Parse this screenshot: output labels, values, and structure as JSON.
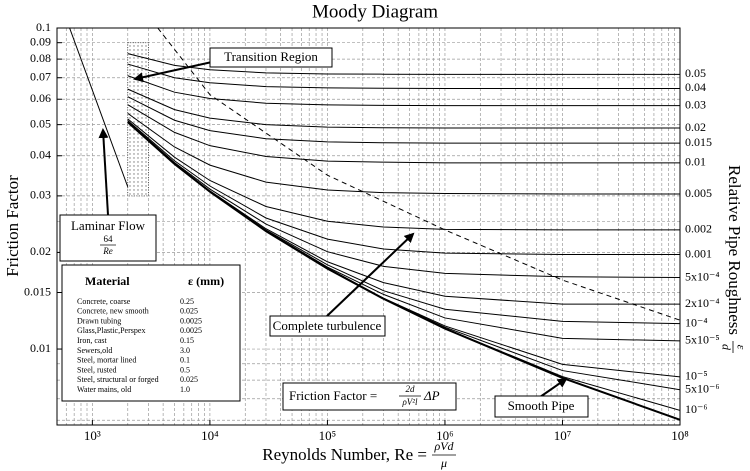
{
  "chart_data": {
    "type": "line",
    "title": "Moody Diagram",
    "x_label": {
      "lead": "Reynolds Number, Re =",
      "numerator": "ρVd",
      "denominator": "μ"
    },
    "y_label": "Friction Factor",
    "y2_label": {
      "lead": "Relative Pipe Roughness",
      "numerator": "ε",
      "denominator": "d"
    },
    "log_x": true,
    "log_y": true,
    "grid": true,
    "xlim": [
      500,
      100000000
    ],
    "ylim": [
      0.0058,
      0.1
    ],
    "xticks": [
      {
        "value": 1000,
        "label": "10³"
      },
      {
        "value": 10000,
        "label": "10⁴"
      },
      {
        "value": 100000,
        "label": "10⁵"
      },
      {
        "value": 1000000,
        "label": "10⁶"
      },
      {
        "value": 10000000,
        "label": "10⁷"
      },
      {
        "value": 100000000,
        "label": "10⁸"
      }
    ],
    "xminorticks": [
      600,
      700,
      800,
      900,
      2000,
      3000,
      4000,
      5000,
      6000,
      7000,
      8000,
      9000,
      20000,
      30000,
      40000,
      50000,
      60000,
      70000,
      80000,
      90000,
      200000,
      300000,
      400000,
      500000,
      600000,
      700000,
      800000,
      900000,
      2000000,
      3000000,
      4000000,
      5000000,
      6000000,
      7000000,
      8000000,
      9000000,
      20000000,
      30000000,
      40000000,
      50000000,
      60000000,
      70000000,
      80000000,
      90000000
    ],
    "yticks": [
      0.1,
      0.09,
      0.08,
      0.07,
      0.06,
      0.05,
      0.04,
      0.03,
      0.02,
      0.015,
      0.01
    ],
    "yminorticks": [
      0.025,
      0.009,
      0.008,
      0.007,
      0.006
    ],
    "x": [
      2000,
      5000,
      10000,
      30000,
      100000,
      300000,
      1000000,
      10000000,
      100000000
    ],
    "series": [
      {
        "name": "0.05",
        "color": "#000000",
        "values": [
          0.0832,
          0.0765,
          0.0741,
          0.0725,
          0.0719,
          0.0718,
          0.0717,
          0.0717,
          0.0717
        ]
      },
      {
        "name": "0.04",
        "color": "#000000",
        "values": [
          0.0772,
          0.07,
          0.0675,
          0.0657,
          0.0651,
          0.0649,
          0.0648,
          0.0648,
          0.0648
        ]
      },
      {
        "name": "0.03",
        "color": "#000000",
        "values": [
          0.071,
          0.0631,
          0.0603,
          0.0583,
          0.0576,
          0.0574,
          0.0573,
          0.0573,
          0.0573
        ]
      },
      {
        "name": "0.02",
        "color": "#000000",
        "values": [
          0.0645,
          0.0557,
          0.0524,
          0.05,
          0.0491,
          0.0489,
          0.0488,
          0.0488,
          0.0488
        ]
      },
      {
        "name": "0.015",
        "color": "#000000",
        "values": [
          0.0611,
          0.0516,
          0.0479,
          0.0452,
          0.0442,
          0.0439,
          0.0438,
          0.0438,
          0.0438
        ]
      },
      {
        "name": "0.01",
        "color": "#000000",
        "values": [
          0.0577,
          0.0473,
          0.043,
          0.0398,
          0.0385,
          0.0382,
          0.038,
          0.038,
          0.038
        ]
      },
      {
        "name": "0.005",
        "color": "#000000",
        "values": [
          0.0542,
          0.0426,
          0.0374,
          0.0331,
          0.0313,
          0.0307,
          0.0305,
          0.0304,
          0.0304
        ]
      },
      {
        "name": "0.002",
        "color": "#000000",
        "values": [
          0.0521,
          0.0396,
          0.0335,
          0.0278,
          0.025,
          0.024,
          0.0236,
          0.0235,
          0.0235
        ]
      },
      {
        "name": "0.001",
        "color": "#000000",
        "values": [
          0.0515,
          0.0386,
          0.0322,
          0.0256,
          0.022,
          0.0205,
          0.0199,
          0.0197,
          0.0197
        ]
      },
      {
        "name": "5x10⁻⁴",
        "color": "#000000",
        "values": [
          0.0512,
          0.0381,
          0.0315,
          0.0245,
          0.0201,
          0.0181,
          0.0172,
          0.0168,
          0.0167
        ]
      },
      {
        "name": "2x10⁻⁴",
        "color": "#000000",
        "values": [
          0.051,
          0.0379,
          0.0311,
          0.0237,
          0.0187,
          0.0161,
          0.0146,
          0.0138,
          0.0138
        ]
      },
      {
        "name": "10⁻⁴",
        "color": "#000000",
        "values": [
          0.0509,
          0.0378,
          0.031,
          0.0235,
          0.0183,
          0.0152,
          0.0133,
          0.0122,
          0.012
        ]
      },
      {
        "name": "5x10⁻⁵",
        "color": "#000000",
        "values": [
          0.0509,
          0.0378,
          0.0309,
          0.0234,
          0.018,
          0.0148,
          0.0125,
          0.0108,
          0.0106
        ]
      },
      {
        "name": "10⁻⁵",
        "color": "#000000",
        "values": [
          0.0509,
          0.0377,
          0.0309,
          0.0233,
          0.0179,
          0.0144,
          0.0118,
          0.00896,
          0.00819
        ]
      },
      {
        "name": "5x10⁻⁶",
        "color": "#000000",
        "values": [
          0.0509,
          0.0377,
          0.0309,
          0.0233,
          0.0178,
          0.0144,
          0.0117,
          0.00857,
          0.00747
        ]
      },
      {
        "name": "10⁻⁶",
        "color": "#000000",
        "values": [
          0.0509,
          0.0377,
          0.0309,
          0.0233,
          0.0178,
          0.01435,
          0.0116,
          0.00821,
          0.00644
        ]
      }
    ],
    "reference_lines": [
      {
        "name": "Smooth Pipe",
        "color": "#000000",
        "linewidth": 2,
        "x": [
          2000,
          5000,
          10000,
          30000,
          100000,
          300000,
          1000000,
          10000000,
          100000000
        ],
        "values": [
          0.0509,
          0.0377,
          0.0309,
          0.0233,
          0.0178,
          0.01434,
          0.01158,
          0.00813,
          0.00602
        ]
      },
      {
        "name": "Laminar Flow",
        "color": "#000000",
        "linewidth": 1,
        "x": [
          640,
          2000
        ],
        "values": [
          0.1,
          0.032
        ]
      },
      {
        "name": "Complete turbulence",
        "color": "#000000",
        "linewidth": 1,
        "dashed": true,
        "x": [
          3600,
          10000,
          100000,
          1000000,
          10000000,
          100000000
        ],
        "values": [
          0.1,
          0.062,
          0.0348,
          0.0235,
          0.0164,
          0.0123
        ]
      }
    ],
    "transition_region": {
      "label": "Transition Region",
      "x": [
        2000,
        3000
      ],
      "y": [
        0.03,
        0.09
      ]
    },
    "annotations": {
      "laminar_formula": {
        "numerator": "64",
        "denominator": "Re"
      },
      "friction_formula": {
        "lead": "Friction Factor =",
        "numerator": "2d",
        "denominator": "ρV²l",
        "tail": "ΔP"
      }
    },
    "material_table": {
      "columns": [
        "Material",
        "ε (mm)"
      ],
      "rows": [
        [
          "Concrete, coarse",
          "0.25"
        ],
        [
          "Concrete, new smooth",
          "0.025"
        ],
        [
          "Drawn tubing",
          "0.0025"
        ],
        [
          "Glass,Plastic,Perspex",
          "0.0025"
        ],
        [
          "Iron, cast",
          "0.15"
        ],
        [
          "Sewers,old",
          "3.0"
        ],
        [
          "Steel, mortar lined",
          "0.1"
        ],
        [
          "Steel, rusted",
          "0.5"
        ],
        [
          "Steel, structural or forged",
          "0.025"
        ],
        [
          "Water mains, old",
          "1.0"
        ]
      ]
    }
  }
}
